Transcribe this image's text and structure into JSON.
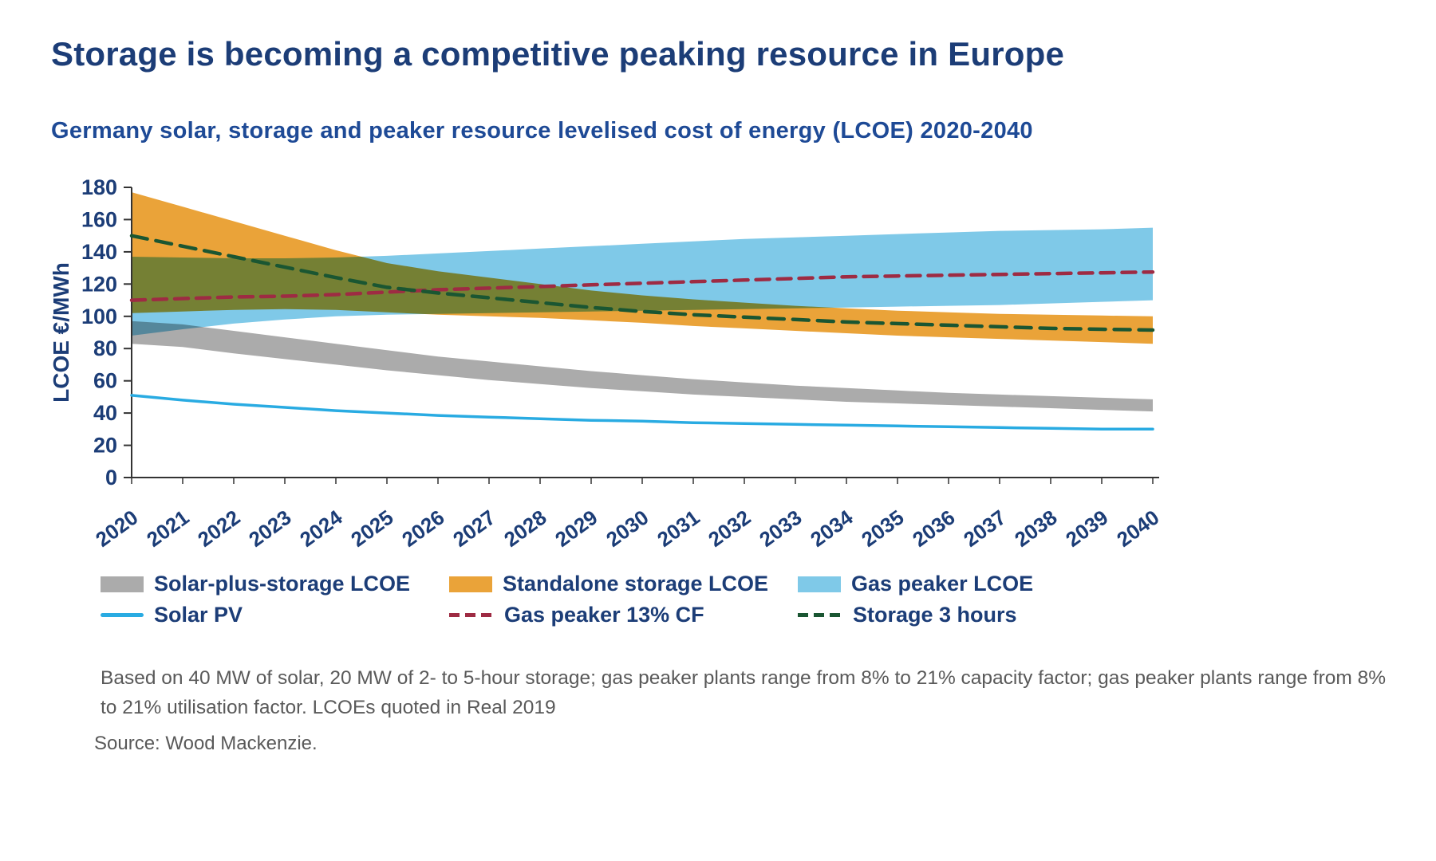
{
  "page": {
    "footnote": "Based on 40 MW of solar, 20 MW of 2- to 5-hour storage; gas peaker plants range from 8% to 21% capacity factor; gas peaker plants range from 8% to 21% utilisation factor. LCOEs quoted in Real 2019",
    "source": "Source: Wood Mackenzie."
  },
  "colors": {
    "navy_text": "#1C3D77",
    "subtitle_blue": "#1E4A96",
    "axis": "#333333",
    "footnote_gray": "#595959"
  },
  "chart_data": {
    "type": "area",
    "title": "Storage is becoming a competitive peaking resource in Europe",
    "subtitle": "Germany solar, storage and peaker resource levelised cost of energy (LCOE) 2020-2040",
    "ylabel": "LCOE €/MWh",
    "xlabel": "",
    "ylim": [
      0,
      180
    ],
    "ytick_step": 20,
    "grid": false,
    "legend_position": "bottom",
    "x": [
      2020,
      2021,
      2022,
      2023,
      2024,
      2025,
      2026,
      2027,
      2028,
      2029,
      2030,
      2031,
      2032,
      2033,
      2034,
      2035,
      2036,
      2037,
      2038,
      2039,
      2040
    ],
    "bands": [
      {
        "name": "Solar-plus-storage LCOE",
        "color": "#ABABAB",
        "upper": [
          97,
          95,
          91,
          87,
          83,
          79,
          75,
          72,
          69,
          66,
          63.5,
          61,
          59,
          57,
          55.5,
          54,
          52.5,
          51.5,
          50.5,
          49.5,
          48.5
        ],
        "lower": [
          83,
          81,
          77,
          73.5,
          70,
          66.5,
          63.5,
          60.5,
          58,
          55.5,
          53.5,
          51.5,
          50,
          48.5,
          47,
          46,
          45,
          44,
          43,
          42,
          41
        ]
      },
      {
        "name": "Standalone storage LCOE",
        "color": "#EAA339",
        "upper": [
          177,
          168,
          159,
          150,
          141,
          133,
          128,
          124,
          120,
          116,
          113,
          110.5,
          108.5,
          106.5,
          105,
          103.5,
          102.5,
          101.5,
          101,
          100.5,
          100
        ],
        "lower": [
          102,
          103,
          104,
          104.5,
          104,
          102.5,
          101,
          100,
          99,
          97.5,
          96,
          94,
          92.5,
          91,
          89.5,
          88,
          87,
          86,
          85,
          84,
          83
        ]
      },
      {
        "name": "Gas peaker LCOE",
        "color": "#7FC9E8",
        "upper": [
          137,
          136.5,
          136,
          136,
          136.5,
          137.5,
          139,
          140.5,
          142,
          143.5,
          145,
          146.5,
          148,
          149,
          150,
          151,
          152,
          153,
          153.5,
          154,
          155
        ],
        "lower": [
          88,
          92,
          95.5,
          98,
          100,
          101,
          101.5,
          102,
          102.5,
          103,
          103.5,
          104,
          104.5,
          105,
          105.5,
          106,
          106.5,
          107,
          108,
          109,
          110
        ]
      }
    ],
    "lines": [
      {
        "name": "Solar PV",
        "color": "#29ABE2",
        "style": "solid",
        "width": 3.5,
        "values": [
          51,
          48,
          45.5,
          43.5,
          41.5,
          40,
          38.5,
          37.5,
          36.5,
          35.5,
          35,
          34,
          33.5,
          33,
          32.5,
          32,
          31.5,
          31,
          30.5,
          30,
          30
        ]
      },
      {
        "name": "Gas peaker 13% CF",
        "color": "#9E2B43",
        "style": "dashed",
        "width": 4.5,
        "dash": [
          17,
          10
        ],
        "values": [
          110,
          111,
          112,
          112.5,
          113.5,
          115,
          116.5,
          117.5,
          118.5,
          119.5,
          120.5,
          121.5,
          122.5,
          123.5,
          124.5,
          125,
          125.5,
          126,
          126.5,
          127,
          127.5
        ]
      },
      {
        "name": "Storage 3 hours",
        "color": "#1A5632",
        "style": "dashed",
        "width": 4.5,
        "dash": [
          20,
          11
        ],
        "values": [
          150,
          143.5,
          137,
          130.5,
          124,
          118,
          114.5,
          111.5,
          108.5,
          105.5,
          103,
          101,
          99.5,
          98,
          96.5,
          95.5,
          94.5,
          93.5,
          92.5,
          92,
          91.5
        ]
      }
    ]
  },
  "legend": {
    "items": [
      {
        "label": "Solar-plus-storage LCOE",
        "marker": "band",
        "color": "#ABABAB"
      },
      {
        "label": "Standalone storage LCOE",
        "marker": "band",
        "color": "#EAA339"
      },
      {
        "label": "Gas peaker LCOE",
        "marker": "band",
        "color": "#7FC9E8"
      },
      {
        "label": "Solar PV",
        "marker": "line",
        "color": "#29ABE2"
      },
      {
        "label": "Gas peaker 13% CF",
        "marker": "dashed",
        "color": "#9E2B43"
      },
      {
        "label": "Storage 3 hours",
        "marker": "dashed",
        "color": "#1A5632"
      }
    ]
  }
}
